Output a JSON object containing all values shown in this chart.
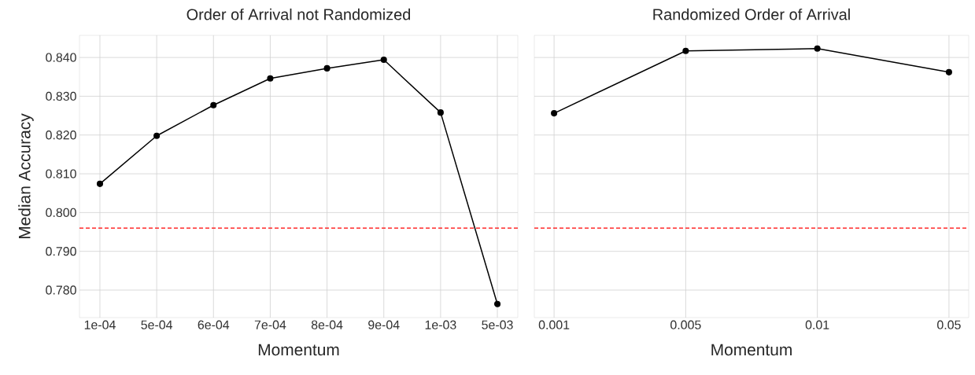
{
  "chart_data": [
    {
      "type": "line",
      "title": "Order of Arrival not Randomized",
      "xlabel": "Momentum",
      "ylabel": "Median Accuracy",
      "categories": [
        "1e-04",
        "5e-04",
        "6e-04",
        "7e-04",
        "8e-04",
        "9e-04",
        "1e-03",
        "5e-03"
      ],
      "values": [
        0.8074,
        0.8198,
        0.8277,
        0.8346,
        0.8372,
        0.8394,
        0.8258,
        0.7764
      ],
      "color": "#000000",
      "marker": "circle",
      "grid": true,
      "ylim": [
        0.7729,
        0.8457
      ],
      "yticks": [
        {
          "value": 0.78,
          "label": "0.780"
        },
        {
          "value": 0.79,
          "label": "0.790"
        },
        {
          "value": 0.8,
          "label": "0.800"
        },
        {
          "value": 0.81,
          "label": "0.810"
        },
        {
          "value": 0.82,
          "label": "0.820"
        },
        {
          "value": 0.83,
          "label": "0.830"
        },
        {
          "value": 0.84,
          "label": "0.840"
        }
      ],
      "ref_lines": [
        {
          "axis": "y",
          "value": 0.796,
          "color": "#ff0000",
          "line_style": "dashed"
        }
      ]
    },
    {
      "type": "line",
      "title": "Randomized Order of Arrival",
      "xlabel": "Momentum",
      "categories": [
        "0.001",
        "0.005",
        "0.01",
        "0.05"
      ],
      "values": [
        0.8256,
        0.8417,
        0.8423,
        0.8362
      ],
      "color": "#000000",
      "marker": "circle",
      "grid": true,
      "tick_labels": "x",
      "ylim": [
        0.7729,
        0.8457
      ],
      "yticks": [
        0.78,
        0.79,
        0.8,
        0.81,
        0.82,
        0.83,
        0.84
      ],
      "ref_lines": [
        {
          "axis": "y",
          "value": 0.796,
          "color": "#ff0000",
          "line_style": "dashed"
        }
      ]
    }
  ]
}
